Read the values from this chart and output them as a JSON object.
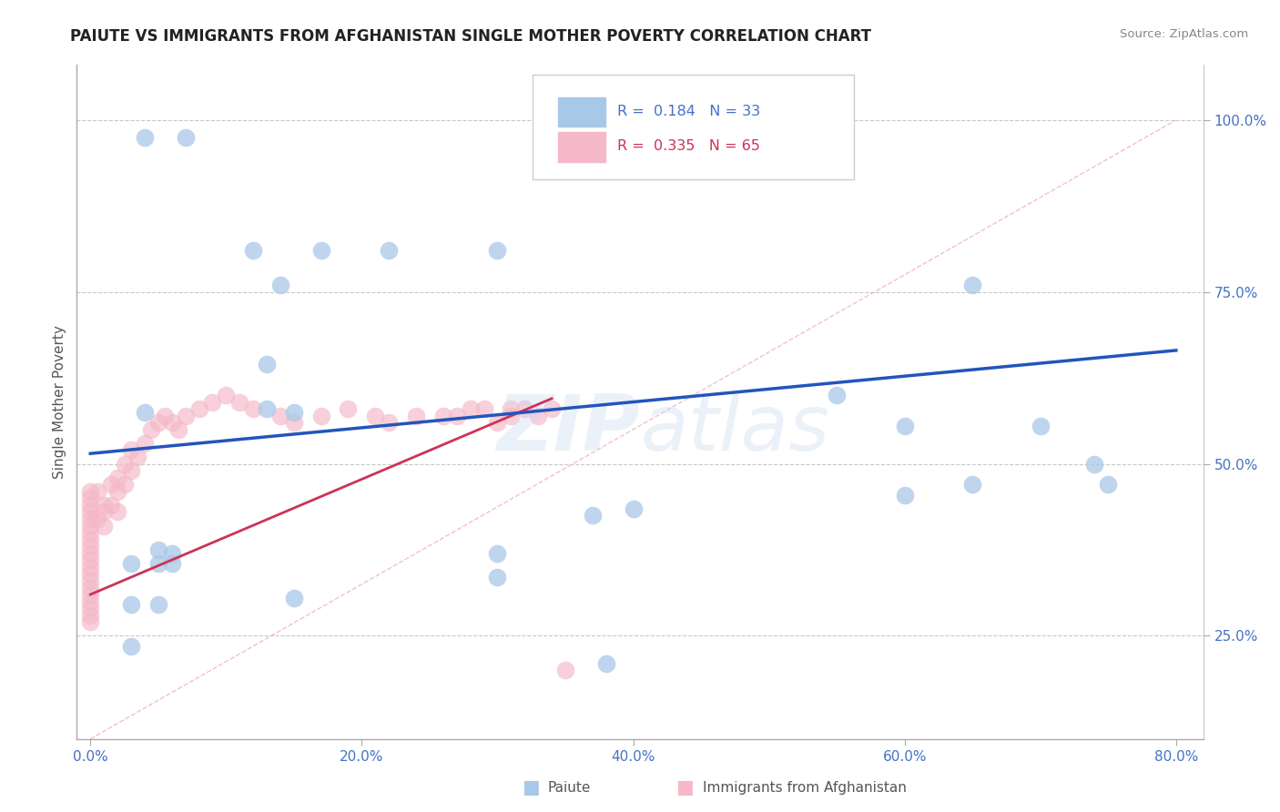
{
  "title": "PAIUTE VS IMMIGRANTS FROM AFGHANISTAN SINGLE MOTHER POVERTY CORRELATION CHART",
  "source": "Source: ZipAtlas.com",
  "ylabel": "Single Mother Poverty",
  "xlabel_ticks": [
    "0.0%",
    "20.0%",
    "40.0%",
    "60.0%",
    "80.0%"
  ],
  "xlabel_vals": [
    0.0,
    0.2,
    0.4,
    0.6,
    0.8
  ],
  "ylabel_ticks": [
    "25.0%",
    "50.0%",
    "75.0%",
    "100.0%"
  ],
  "ylabel_vals": [
    0.25,
    0.5,
    0.75,
    1.0
  ],
  "xlim": [
    -0.01,
    0.82
  ],
  "ylim": [
    0.1,
    1.08
  ],
  "legend_blue_label": "Paiute",
  "legend_pink_label": "Immigrants from Afghanistan",
  "R_blue": 0.184,
  "N_blue": 33,
  "R_pink": 0.335,
  "N_pink": 65,
  "blue_color": "#a8c8e8",
  "pink_color": "#f4b8c8",
  "blue_line_color": "#2255bb",
  "pink_line_color": "#cc3355",
  "diag_color": "#f0b0c0",
  "grid_color": "#c8c8c8",
  "background_color": "#ffffff",
  "watermark": "ZIPatlas",
  "blue_line_x": [
    0.0,
    0.8
  ],
  "blue_line_y": [
    0.515,
    0.665
  ],
  "pink_line_x": [
    0.0,
    0.34
  ],
  "pink_line_y": [
    0.31,
    0.595
  ],
  "blue_x": [
    0.04,
    0.07,
    0.12,
    0.17,
    0.22,
    0.3,
    0.14,
    0.65,
    0.13,
    0.13,
    0.04,
    0.15,
    0.55,
    0.6,
    0.7,
    0.74,
    0.37,
    0.05,
    0.3,
    0.3,
    0.03,
    0.05,
    0.06,
    0.06,
    0.15,
    0.4,
    0.6,
    0.65,
    0.75,
    0.05,
    0.03,
    0.03,
    0.38
  ],
  "blue_y": [
    0.975,
    0.975,
    0.81,
    0.81,
    0.81,
    0.81,
    0.76,
    0.76,
    0.645,
    0.58,
    0.575,
    0.575,
    0.6,
    0.555,
    0.555,
    0.5,
    0.425,
    0.375,
    0.37,
    0.335,
    0.355,
    0.355,
    0.355,
    0.37,
    0.305,
    0.435,
    0.455,
    0.47,
    0.47,
    0.295,
    0.295,
    0.235,
    0.21
  ],
  "pink_x": [
    0.0,
    0.0,
    0.0,
    0.0,
    0.0,
    0.0,
    0.0,
    0.0,
    0.0,
    0.0,
    0.0,
    0.0,
    0.0,
    0.0,
    0.0,
    0.0,
    0.0,
    0.0,
    0.0,
    0.0,
    0.005,
    0.005,
    0.01,
    0.01,
    0.01,
    0.015,
    0.015,
    0.02,
    0.02,
    0.02,
    0.025,
    0.025,
    0.03,
    0.03,
    0.035,
    0.04,
    0.045,
    0.05,
    0.055,
    0.06,
    0.065,
    0.07,
    0.08,
    0.09,
    0.1,
    0.11,
    0.12,
    0.14,
    0.15,
    0.17,
    0.19,
    0.21,
    0.22,
    0.24,
    0.26,
    0.27,
    0.28,
    0.29,
    0.3,
    0.31,
    0.31,
    0.32,
    0.33,
    0.34,
    0.35
  ],
  "pink_y": [
    0.46,
    0.45,
    0.44,
    0.43,
    0.42,
    0.41,
    0.4,
    0.39,
    0.38,
    0.37,
    0.36,
    0.35,
    0.34,
    0.33,
    0.32,
    0.31,
    0.3,
    0.29,
    0.28,
    0.27,
    0.46,
    0.42,
    0.44,
    0.43,
    0.41,
    0.47,
    0.44,
    0.48,
    0.46,
    0.43,
    0.5,
    0.47,
    0.52,
    0.49,
    0.51,
    0.53,
    0.55,
    0.56,
    0.57,
    0.56,
    0.55,
    0.57,
    0.58,
    0.59,
    0.6,
    0.59,
    0.58,
    0.57,
    0.56,
    0.57,
    0.58,
    0.57,
    0.56,
    0.57,
    0.57,
    0.57,
    0.58,
    0.58,
    0.56,
    0.58,
    0.57,
    0.58,
    0.57,
    0.58,
    0.2
  ]
}
